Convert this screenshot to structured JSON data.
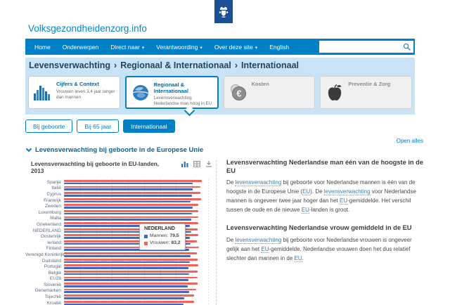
{
  "brand": {
    "title": "Volksgezondheidenzorg.info"
  },
  "nav": {
    "items": [
      {
        "label": "Home",
        "dropdown": false
      },
      {
        "label": "Onderwerpen",
        "dropdown": false
      },
      {
        "label": "Direct naar",
        "dropdown": true
      },
      {
        "label": "Verantwoording",
        "dropdown": true
      },
      {
        "label": "Over deze site",
        "dropdown": true
      },
      {
        "label": "English",
        "dropdown": false
      }
    ],
    "search_value": ""
  },
  "breadcrumb": {
    "parts": [
      "Levensverwachting",
      "Regionaal & Internationaal",
      "Internationaal"
    ],
    "separator": "›"
  },
  "cards": [
    {
      "title": "Cijfers & Context",
      "subtitle": "Vrouwen leven 3,4 jaar langer dan mannen",
      "icon": "bar-chart-icon",
      "state": "normal"
    },
    {
      "title": "Regionaal & Internationaal",
      "subtitle": "Levensverwachting Nederlandse man hoog in EU",
      "icon": "globe-icon",
      "state": "active"
    },
    {
      "title": "Kosten",
      "subtitle": "",
      "icon": "euro-icon",
      "state": "disabled"
    },
    {
      "title": "Preventie & Zorg",
      "subtitle": "",
      "icon": "apple-icon",
      "state": "disabled"
    }
  ],
  "filters": [
    {
      "label": "Bij geboorte",
      "active": false
    },
    {
      "label": "Bij 65 jaar",
      "active": false
    },
    {
      "label": "Internationaal",
      "active": true
    }
  ],
  "open_alles": "Open alles",
  "section": {
    "title": "Levensverwachting bij geboorte in de Europese Unie"
  },
  "chart": {
    "title": "Levensverwachting bij geboorte in EU-landen, 2013",
    "toolbar": [
      "chart-type-icon",
      "table-view-icon",
      "download-icon"
    ]
  },
  "chart_data": {
    "type": "bar",
    "orientation": "horizontal",
    "title": "Levensverwachting bij geboorte in EU-landen, 2013",
    "categories": [
      "Spanje",
      "Italië",
      "Cyprus",
      "Frankrijk",
      "Zweden",
      "Luxemburg",
      "Malta",
      "Griekenland",
      "NEDERLAND",
      "Oostenrijk",
      "Ierland",
      "Finland",
      "Verenigd Koninkrijk",
      "Duitsland",
      "Portugal",
      "België",
      "EU28",
      "Slovenië",
      "Denemarken",
      "Tsjechië",
      "Kroatië"
    ],
    "series": [
      {
        "name": "Vrouwen",
        "color": "#F2645A",
        "values": [
          86.1,
          85.2,
          85.0,
          85.6,
          83.8,
          83.9,
          84.0,
          84.0,
          83.2,
          83.8,
          83.1,
          84.1,
          82.9,
          83.2,
          84.0,
          83.2,
          83.3,
          83.6,
          82.4,
          81.3,
          81.0
        ]
      },
      {
        "name": "Mannen",
        "color": "#3D68C5",
        "values": [
          80.2,
          80.3,
          80.1,
          79.0,
          80.2,
          79.8,
          79.6,
          78.7,
          79.5,
          78.6,
          79.0,
          78.0,
          79.2,
          78.6,
          77.6,
          78.1,
          77.8,
          77.2,
          78.3,
          75.2,
          74.5
        ]
      }
    ],
    "xlim": [
      0,
      90
    ],
    "grid": true,
    "legend_position": "tooltip-only",
    "note_clipping": "chart is clipped by the bottom of the viewport; last row only partially visible"
  },
  "tooltip": {
    "title": "NEDERLAND",
    "rows": [
      {
        "label": "Mannen",
        "value": "79,5",
        "color": "#3D68C5"
      },
      {
        "label": "Vrouwen",
        "value": "83,2",
        "color": "#F2645A"
      }
    ]
  },
  "articles": [
    {
      "heading": "Levensverwachting Nederlandse man één van de hoogste in de EU",
      "segments": [
        {
          "t": "De "
        },
        {
          "t": "levensverwachting",
          "link": true
        },
        {
          "t": " bij geboorte voor Nederlandse mannen is één van de hoogste in de Europese Unie ("
        },
        {
          "t": "EU",
          "link": true
        },
        {
          "t": "). De "
        },
        {
          "t": "levensverwachting",
          "link": true
        },
        {
          "t": " voor Nederlandse mannen is ongeveer twee jaar hoger dan het "
        },
        {
          "t": "EU",
          "link": true
        },
        {
          "t": "-gemiddelde. Het verschil tussen de oude en de nieuwe "
        },
        {
          "t": "EU",
          "link": true
        },
        {
          "t": "-landen is groot."
        }
      ]
    },
    {
      "heading": "Levensverwachting Nederlandse vrouw gemiddeld in de EU",
      "segments": [
        {
          "t": "De "
        },
        {
          "t": "levensverwachting",
          "link": true
        },
        {
          "t": " bij geboorte voor Nederlandse vrouwen is ongeveer gelijk aan het "
        },
        {
          "t": "EU",
          "link": true
        },
        {
          "t": "-gemiddelde. Nederlandse vrouwen doen het dus relatief slechter dan mannen in de "
        },
        {
          "t": "EU",
          "link": true
        },
        {
          "t": "."
        }
      ]
    }
  ],
  "colors": {
    "nav_blue": "#0081C7",
    "logo_navy": "#1C4F96",
    "brand_blue": "#0089CD",
    "hero_light_blue": "#C8E3F5",
    "heading_blue": "#01689B",
    "bar_red": "#F2645A",
    "bar_blue": "#3D68C5"
  }
}
